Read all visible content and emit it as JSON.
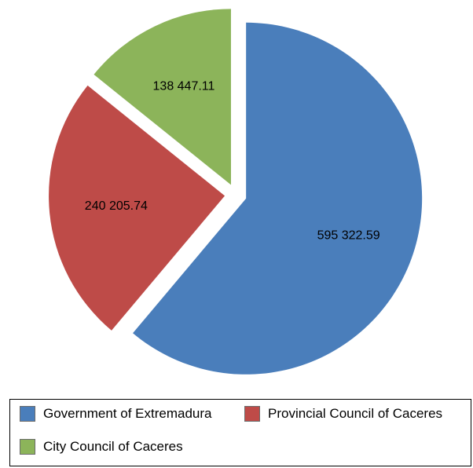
{
  "chart_data": {
    "type": "pie",
    "slices": [
      {
        "label": "Government of Extremadura",
        "value": 595322.59,
        "value_text": "595 322.59",
        "color": "#4a7ebb"
      },
      {
        "label": "Provincial Council of Caceres",
        "value": 240205.74,
        "value_text": "240 205.74",
        "color": "#be4b48"
      },
      {
        "label": "City Council of Caceres",
        "value": 138447.11,
        "value_text": "138 447.11",
        "color": "#8cb45a"
      }
    ],
    "exploded": true,
    "legend_position": "bottom"
  }
}
